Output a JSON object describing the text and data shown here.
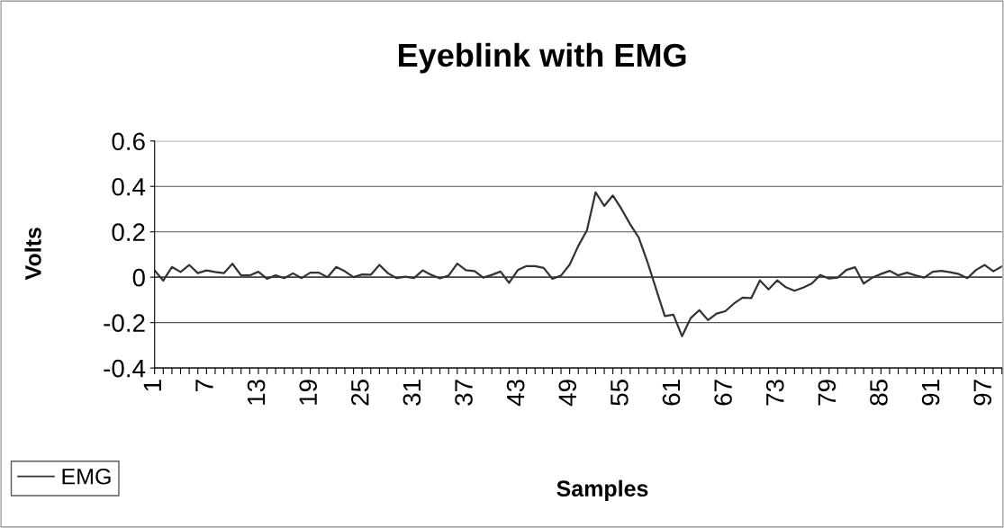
{
  "chart_data": {
    "type": "line",
    "title": "Eyeblink with EMG",
    "xlabel": "Samples",
    "ylabel": "Volts",
    "categories": [
      "1",
      null,
      null,
      null,
      null,
      null,
      "7",
      null,
      null,
      null,
      null,
      null,
      "13",
      null,
      null,
      null,
      null,
      null,
      "19",
      null,
      null,
      null,
      null,
      null,
      "25",
      null,
      null,
      null,
      null,
      null,
      "31",
      null,
      null,
      null,
      null,
      null,
      "37",
      null,
      null,
      null,
      null,
      null,
      "43",
      null,
      null,
      null,
      null,
      null,
      "49",
      null,
      null,
      null,
      null,
      null,
      "55",
      null,
      null,
      null,
      null,
      null,
      "61",
      null,
      null,
      null,
      null,
      null,
      "67",
      null,
      null,
      null,
      null,
      null,
      "73",
      null,
      null,
      null,
      null,
      null,
      "79",
      null,
      null,
      null,
      null,
      null,
      "85",
      null,
      null,
      null,
      null,
      null,
      "91",
      null,
      null,
      null,
      null,
      null,
      "97",
      null,
      null
    ],
    "series": [
      {
        "name": "EMG",
        "color": "#333333",
        "values": [
          0.03,
          -0.015,
          0.045,
          0.023,
          0.054,
          0.018,
          0.03,
          0.023,
          0.018,
          0.059,
          0.008,
          0.008,
          0.024,
          -0.007,
          0.008,
          -0.004,
          0.017,
          -0.004,
          0.02,
          0.02,
          0,
          0.045,
          0.026,
          0,
          0.012,
          0.011,
          0.054,
          0.017,
          -0.004,
          0.002,
          -0.004,
          0.03,
          0.01,
          -0.005,
          0.007,
          0.06,
          0.031,
          0.027,
          -0.002,
          0.01,
          0.025,
          -0.025,
          0.031,
          0.049,
          0.049,
          0.041,
          -0.007,
          0.007,
          0.055,
          0.138,
          0.207,
          0.374,
          0.314,
          0.36,
          0.3,
          0.233,
          0.174,
          0.067,
          -0.052,
          -0.171,
          -0.165,
          -0.26,
          -0.18,
          -0.145,
          -0.189,
          -0.16,
          -0.15,
          -0.116,
          -0.09,
          -0.092,
          -0.014,
          -0.054,
          -0.014,
          -0.044,
          -0.06,
          -0.046,
          -0.028,
          0.01,
          -0.006,
          -0.002,
          0.032,
          0.044,
          -0.028,
          -0.002,
          0.014,
          0.028,
          0.008,
          0.02,
          0.008,
          -0.002,
          0.024,
          0.028,
          0.022,
          0.014,
          -0.004,
          0.032,
          0.054,
          0.026,
          0.048
        ]
      }
    ],
    "ylim": [
      -0.4,
      0.6
    ],
    "yticks": [
      {
        "value": -0.4,
        "label": "-0.4"
      },
      {
        "value": -0.2,
        "label": "-0.2"
      },
      0,
      0.2,
      0.4,
      0.6
    ],
    "grid": "y",
    "legend": "bottom left",
    "marker": "none",
    "line_style": "solid"
  }
}
